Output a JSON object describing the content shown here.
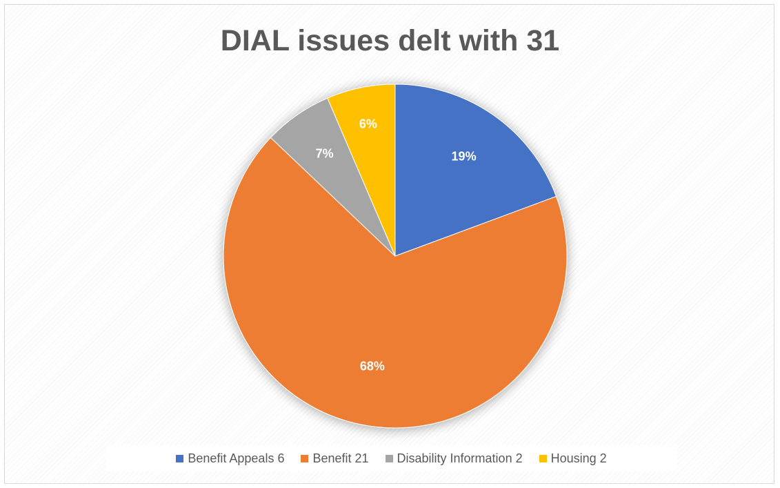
{
  "chart_data": {
    "type": "pie",
    "title": "DIAL issues delt with 31",
    "series": [
      {
        "name": "Benefit Appeals 6",
        "value": 6,
        "label": "19%",
        "color": "#4472C4"
      },
      {
        "name": "Benefit 21",
        "value": 21,
        "label": "68%",
        "color": "#ED7D31"
      },
      {
        "name": "Disability Information 2",
        "value": 2,
        "label": "7%",
        "color": "#A5A5A5"
      },
      {
        "name": "Housing 2",
        "value": 2,
        "label": "6%",
        "color": "#FFC000"
      }
    ],
    "start_angle_deg": 0,
    "direction": "clockwise",
    "legend_position": "bottom"
  }
}
